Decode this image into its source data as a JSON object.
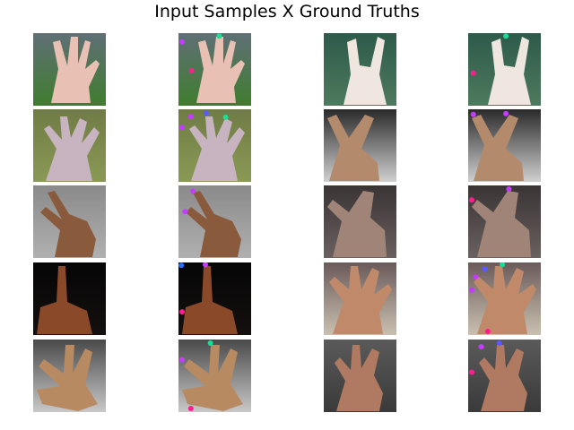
{
  "figure": {
    "title": "Input Samples X Ground Truths"
  },
  "grid": {
    "rows": 5,
    "columns": 4,
    "column_roles": [
      "input sample",
      "ground truth",
      "input sample",
      "ground truth"
    ]
  },
  "samples": [
    {
      "sample_index": 1,
      "background": "fence and grass",
      "background_colors": [
        "#5f6f76",
        "#3f7d2e"
      ],
      "skin": "#e8c1b4",
      "gesture": "open hand, fingers spread"
    },
    {
      "sample_index": 2,
      "background": "leaves",
      "background_colors": [
        "#2d5a4a",
        "#4e7a5e"
      ],
      "skin": "#efe6e0",
      "gesture": "hand with index and pinky raised"
    },
    {
      "sample_index": 3,
      "background": "grass",
      "background_colors": [
        "#6f7b45",
        "#8a9a55"
      ],
      "skin": "#c8b4c0",
      "gesture": "open hand, four fingers"
    },
    {
      "sample_index": 4,
      "background": "striped fabric",
      "background_colors": [
        "#2a2a2a",
        "#d0d0d0"
      ],
      "skin": "#b48a6c",
      "gesture": "hand with two fingers raised"
    },
    {
      "sample_index": 5,
      "background": "grey wall",
      "background_colors": [
        "#8a8a8a",
        "#b0b0b0"
      ],
      "skin": "#8a5a3c",
      "gesture": "two fingers pointing"
    },
    {
      "sample_index": 6,
      "background": "dark room",
      "background_colors": [
        "#3a3434",
        "#6a6060"
      ],
      "skin": "#a08478",
      "gesture": "hand tilted"
    },
    {
      "sample_index": 7,
      "background": "black",
      "background_colors": [
        "#050505",
        "#151010"
      ],
      "skin": "#8a4a2a",
      "gesture": "index finger pointing up"
    },
    {
      "sample_index": 8,
      "background": "indoor",
      "background_colors": [
        "#6a5a5a",
        "#c9c0b0"
      ],
      "skin": "#c08a6a",
      "gesture": "open hand, fingers spread"
    },
    {
      "sample_index": 9,
      "background": "white wall",
      "background_colors": [
        "#4a4a4a",
        "#c8c8c8"
      ],
      "skin": "#b88a62",
      "gesture": "horns gesture"
    },
    {
      "sample_index": 10,
      "background": "dark floor",
      "background_colors": [
        "#5a5a5a",
        "#3a3a3a"
      ],
      "skin": "#b07a62",
      "gesture": "hand with three fingers raised"
    }
  ],
  "keypoint_colors": {
    "thumb": "#ff1e8c",
    "index": "#c33cff",
    "middle": "#5a5aff",
    "ring": "#1edc96",
    "pinky": "#2a6cff"
  },
  "ground_truths": [
    {
      "sample_index": 1,
      "keypoints": [
        {
          "finger": "index",
          "u": 0.05,
          "v": 0.12
        },
        {
          "finger": "ring",
          "u": 0.56,
          "v": 0.04
        },
        {
          "finger": "thumb",
          "u": 0.18,
          "v": 0.52
        }
      ]
    },
    {
      "sample_index": 2,
      "keypoints": [
        {
          "finger": "ring",
          "u": 0.52,
          "v": 0.04
        },
        {
          "finger": "thumb",
          "u": 0.07,
          "v": 0.55
        }
      ]
    },
    {
      "sample_index": 3,
      "keypoints": [
        {
          "finger": "index",
          "u": 0.17,
          "v": 0.1
        },
        {
          "finger": "middle",
          "u": 0.38,
          "v": 0.05
        },
        {
          "finger": "ring",
          "u": 0.65,
          "v": 0.11
        },
        {
          "finger": "index",
          "u": 0.05,
          "v": 0.25
        }
      ]
    },
    {
      "sample_index": 4,
      "keypoints": [
        {
          "finger": "index",
          "u": 0.07,
          "v": 0.07
        },
        {
          "finger": "index",
          "u": 0.52,
          "v": 0.06
        }
      ]
    },
    {
      "sample_index": 5,
      "keypoints": [
        {
          "finger": "index",
          "u": 0.2,
          "v": 0.08
        },
        {
          "finger": "index",
          "u": 0.09,
          "v": 0.36
        }
      ]
    },
    {
      "sample_index": 6,
      "keypoints": [
        {
          "finger": "index",
          "u": 0.56,
          "v": 0.05
        },
        {
          "finger": "thumb",
          "u": 0.05,
          "v": 0.2
        }
      ]
    },
    {
      "sample_index": 7,
      "keypoints": [
        {
          "finger": "pinky",
          "u": 0.04,
          "v": 0.04
        },
        {
          "finger": "index",
          "u": 0.37,
          "v": 0.03
        },
        {
          "finger": "thumb",
          "u": 0.05,
          "v": 0.68
        }
      ]
    },
    {
      "sample_index": 8,
      "keypoints": [
        {
          "finger": "middle",
          "u": 0.23,
          "v": 0.09
        },
        {
          "finger": "ring",
          "u": 0.47,
          "v": 0.03
        },
        {
          "finger": "index",
          "u": 0.1,
          "v": 0.2
        },
        {
          "finger": "index",
          "u": 0.05,
          "v": 0.38
        },
        {
          "finger": "thumb",
          "u": 0.27,
          "v": 0.95
        }
      ]
    },
    {
      "sample_index": 9,
      "keypoints": [
        {
          "finger": "ring",
          "u": 0.44,
          "v": 0.05
        },
        {
          "finger": "index",
          "u": 0.05,
          "v": 0.28
        },
        {
          "finger": "thumb",
          "u": 0.17,
          "v": 0.95
        }
      ]
    },
    {
      "sample_index": 10,
      "keypoints": [
        {
          "finger": "index",
          "u": 0.18,
          "v": 0.1
        },
        {
          "finger": "middle",
          "u": 0.43,
          "v": 0.05
        },
        {
          "finger": "thumb",
          "u": 0.05,
          "v": 0.45
        }
      ]
    }
  ]
}
